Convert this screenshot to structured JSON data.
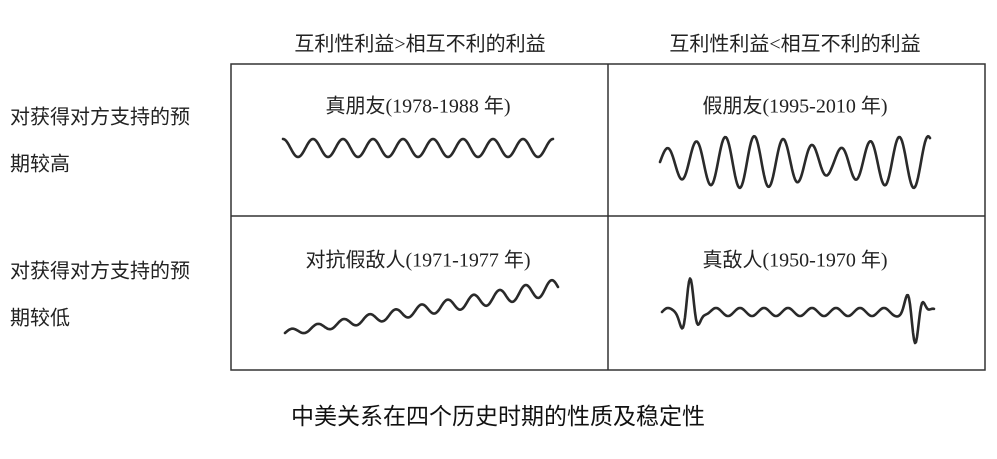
{
  "columns": [
    "互利性利益>相互不利的利益",
    "互利性利益<相互不利的利益"
  ],
  "rows": [
    [
      "对获得对方支持的预",
      "期较高"
    ],
    [
      "对获得对方支持的预",
      "期较低"
    ]
  ],
  "cells": [
    [
      "真朋友(1978-1988 年)",
      "假朋友(1995-2010 年)"
    ],
    [
      "对抗假敌人(1971-1977 年)",
      "真敌人(1950-1970 年)"
    ]
  ],
  "caption": "中美关系在四个历史时期的性质及稳定性"
}
